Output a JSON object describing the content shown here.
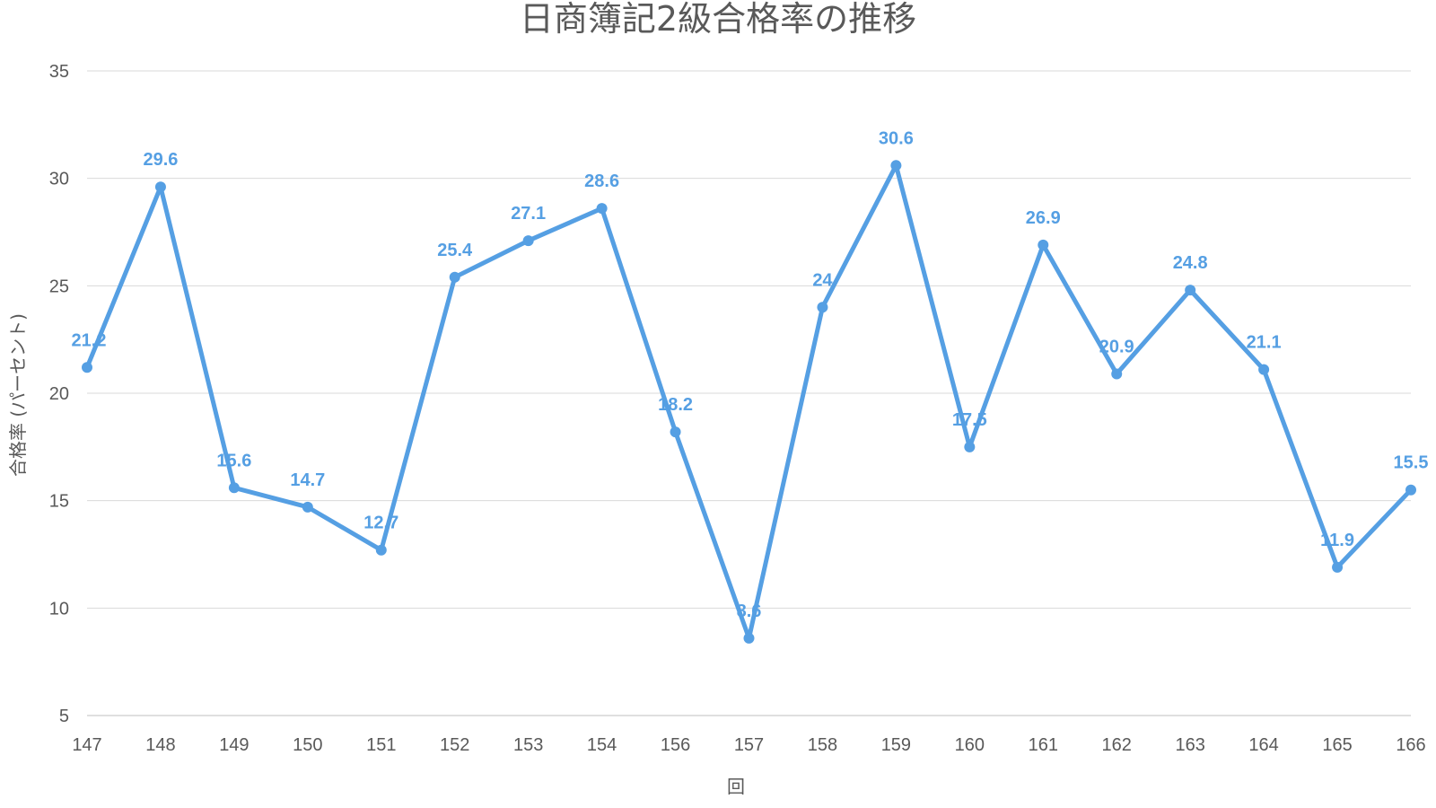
{
  "chart_data": {
    "type": "line",
    "title": "日商簿記2級合格率の推移",
    "xlabel": "回",
    "ylabel": "合格率 (パーセント)",
    "categories": [
      "147",
      "148",
      "149",
      "150",
      "151",
      "152",
      "153",
      "154",
      "156",
      "157",
      "158",
      "159",
      "160",
      "161",
      "162",
      "163",
      "164",
      "165",
      "166"
    ],
    "series": [
      {
        "values": [
          21.2,
          29.6,
          15.6,
          14.7,
          12.7,
          25.4,
          27.1,
          28.6,
          18.2,
          8.6,
          24,
          30.6,
          17.5,
          26.9,
          20.9,
          24.8,
          21.1,
          11.9,
          15.5
        ],
        "labels": [
          "21.2",
          "29.6",
          "15.6",
          "14.7",
          "12.7",
          "25.4",
          "27.1",
          "28.6",
          "18.2",
          "8.6",
          "24",
          "30.6",
          "17.5",
          "26.9",
          "20.9",
          "24.8",
          "21.1",
          "11.9",
          "15.5"
        ],
        "color": "#559fe3"
      }
    ],
    "ylim": [
      5,
      35
    ],
    "yticks": [
      "5",
      "10",
      "15",
      "20",
      "25",
      "30",
      "35"
    ],
    "grid": true,
    "legend": "none"
  }
}
